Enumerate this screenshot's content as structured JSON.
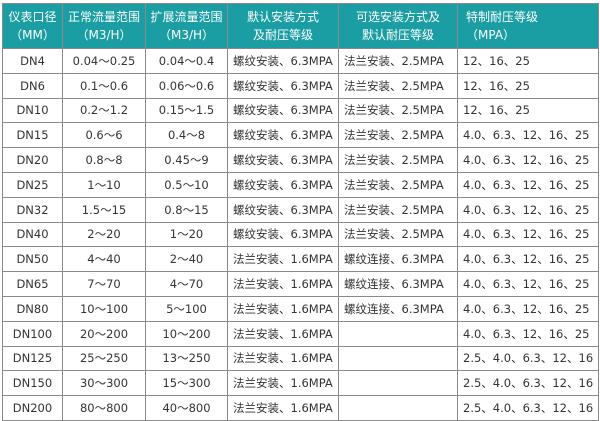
{
  "header": {
    "col1": [
      "仪表口径",
      "（MM）"
    ],
    "col2": [
      "正常流量范围",
      "（M3/H）"
    ],
    "col3": [
      "扩展流量范围",
      "（M3/H）"
    ],
    "col4": [
      "默认安装方式",
      "及耐压等级"
    ],
    "col5": [
      "可选安装方式及",
      "默认耐压等级"
    ],
    "col6": [
      "特制耐压等级",
      "（MPA）"
    ]
  },
  "header_color": "#1a9ea4",
  "rows": [
    [
      "DN4",
      "0.04～0.25",
      "0.04～0.4",
      "螺纹安装、6.3MPA",
      "法兰安装、2.5MPA",
      "12、16、25"
    ],
    [
      "DN6",
      "0.1～0.6",
      "0.06～0.6",
      "螺纹安装、6.3MPA",
      "法兰安装、2.5MPA",
      "12、16、25"
    ],
    [
      "DN10",
      "0.2～1.2",
      "0.15～1.5",
      "螺纹安装、6.3MPA",
      "法兰安装、2.5MPA",
      "12、16、25"
    ],
    [
      "DN15",
      "0.6～6",
      "0.4～8",
      "螺纹安装、6.3MPA",
      "法兰安装、2.5MPA",
      "4.0、6.3、12、16、25"
    ],
    [
      "DN20",
      "0.8～8",
      "0.45～9",
      "螺纹安装、6.3MPA",
      "法兰安装、2.5MPA",
      "4.0、6.3、12、16、25"
    ],
    [
      "DN25",
      "1～10",
      "0.5～10",
      "螺纹安装、6.3MPA",
      "法兰安装、2.5MPA",
      "4.0、6.3、12、16、25"
    ],
    [
      "DN32",
      "1.5～15",
      "0.8～15",
      "螺纹安装、6.3MPA",
      "法兰安装、2.5MPA",
      "4.0、6.3、12、16、25"
    ],
    [
      "DN40",
      "2～20",
      "1～20",
      "螺纹安装、6.3MPA",
      "法兰安装、2.5MPA",
      "4.0、6.3、12、16、25"
    ],
    [
      "DN50",
      "4～40",
      "2～40",
      "法兰安装、1.6MPA",
      "螺纹连接、6.3MPA",
      "4.0、6.3、12、16、25"
    ],
    [
      "DN65",
      "7～70",
      "4～70",
      "法兰安装、1.6MPA",
      "螺纹连接、6.3MPA",
      "4.0、6.3、12、16、25"
    ],
    [
      "DN80",
      "10～100",
      "5～100",
      "法兰安装、1.6MPA",
      "螺纹连接、6.3MPA",
      "4.0、6.3、12、16、25"
    ],
    [
      "DN100",
      "20～200",
      "10～200",
      "法兰安装、1.6MPA",
      "",
      "4.0、6.3、12、16、25"
    ],
    [
      "DN125",
      "25～250",
      "13～250",
      "法兰安装、1.6MPA",
      "",
      "2.5、4.0、6.3、12、16"
    ],
    [
      "DN150",
      "30～300",
      "15～300",
      "法兰安装、1.6MPA",
      "",
      "2.5、4.0、6.3、12、16"
    ],
    [
      "DN200",
      "80～800",
      "40～800",
      "法兰安装、1.6MPA",
      "",
      "2.5、4.0、6.3、12、16"
    ]
  ]
}
